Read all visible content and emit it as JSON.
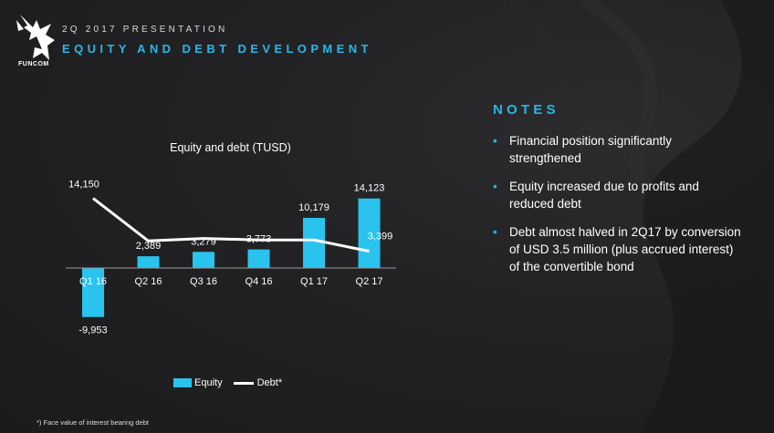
{
  "header": {
    "logo_text": "FUNCOM",
    "presentation_label": "2Q 2017 PRESENTATION",
    "title": "EQUITY AND DEBT DEVELOPMENT"
  },
  "chart_data": {
    "type": "bar",
    "title": "Equity and debt (TUSD)",
    "categories": [
      "Q1 16",
      "Q2 16",
      "Q3 16",
      "Q4 16",
      "Q1 17",
      "Q2 17"
    ],
    "series": [
      {
        "name": "Equity",
        "type": "bar",
        "color": "#29c3ee",
        "values": [
          -9953,
          2389,
          3279,
          3773,
          10179,
          14123
        ]
      },
      {
        "name": "Debt*",
        "type": "line",
        "color": "#ffffff",
        "values": [
          14150,
          5500,
          6000,
          5700,
          5700,
          3399
        ]
      }
    ],
    "data_labels": {
      "equity": [
        "-9,953",
        "2,389",
        "3,279",
        "3,773",
        "10,179",
        "14,123"
      ],
      "debt": [
        "14,150",
        "",
        "",
        "",
        "",
        "3,399"
      ]
    },
    "legend": [
      "Equity",
      "Debt*"
    ],
    "legend_position": "bottom",
    "ylim": [
      -10000,
      15000
    ],
    "grid": false
  },
  "notes": {
    "heading": "NOTES",
    "items": [
      "Financial position significantly strengthened",
      "Equity increased due to profits and reduced debt",
      "Debt almost halved in 2Q17 by conversion of USD 3.5 million (plus accrued interest) of the convertible bond"
    ],
    "bullet": "•"
  },
  "footnote": "*) Face value of interest bearing debt",
  "colors": {
    "accent": "#29b6e8",
    "bar": "#29c3ee",
    "background": "#222224"
  }
}
